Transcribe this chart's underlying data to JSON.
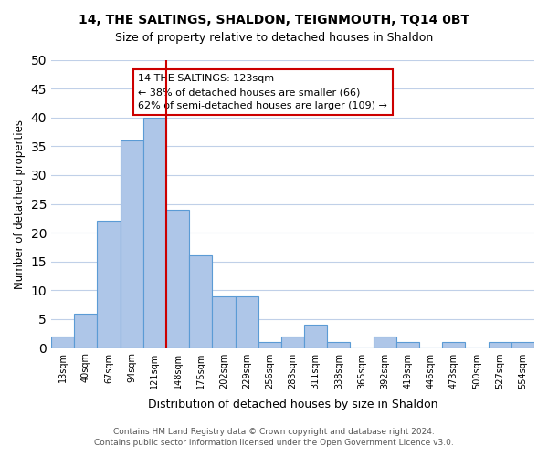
{
  "title1": "14, THE SALTINGS, SHALDON, TEIGNMOUTH, TQ14 0BT",
  "title2": "Size of property relative to detached houses in Shaldon",
  "xlabel": "Distribution of detached houses by size in Shaldon",
  "ylabel": "Number of detached properties",
  "bin_labels": [
    "13sqm",
    "40sqm",
    "67sqm",
    "94sqm",
    "121sqm",
    "148sqm",
    "175sqm",
    "202sqm",
    "229sqm",
    "256sqm",
    "283sqm",
    "311sqm",
    "338sqm",
    "365sqm",
    "392sqm",
    "419sqm",
    "446sqm",
    "473sqm",
    "500sqm",
    "527sqm",
    "554sqm"
  ],
  "bin_values": [
    2,
    6,
    22,
    36,
    40,
    24,
    16,
    9,
    9,
    1,
    2,
    4,
    1,
    0,
    2,
    1,
    0,
    1,
    0,
    1,
    1
  ],
  "bar_color": "#aec6e8",
  "bar_edge_color": "#5b9bd5",
  "vline_x": 4,
  "vline_color": "#cc0000",
  "annotation_title": "14 THE SALTINGS: 123sqm",
  "annotation_line1": "← 38% of detached houses are smaller (66)",
  "annotation_line2": "62% of semi-detached houses are larger (109) →",
  "annotation_box_color": "#ffffff",
  "annotation_box_edge": "#cc0000",
  "ylim": [
    0,
    50
  ],
  "yticks": [
    0,
    5,
    10,
    15,
    20,
    25,
    30,
    35,
    40,
    45,
    50
  ],
  "footer1": "Contains HM Land Registry data © Crown copyright and database right 2024.",
  "footer2": "Contains public sector information licensed under the Open Government Licence v3.0.",
  "bg_color": "#ffffff",
  "grid_color": "#c0d0e8"
}
